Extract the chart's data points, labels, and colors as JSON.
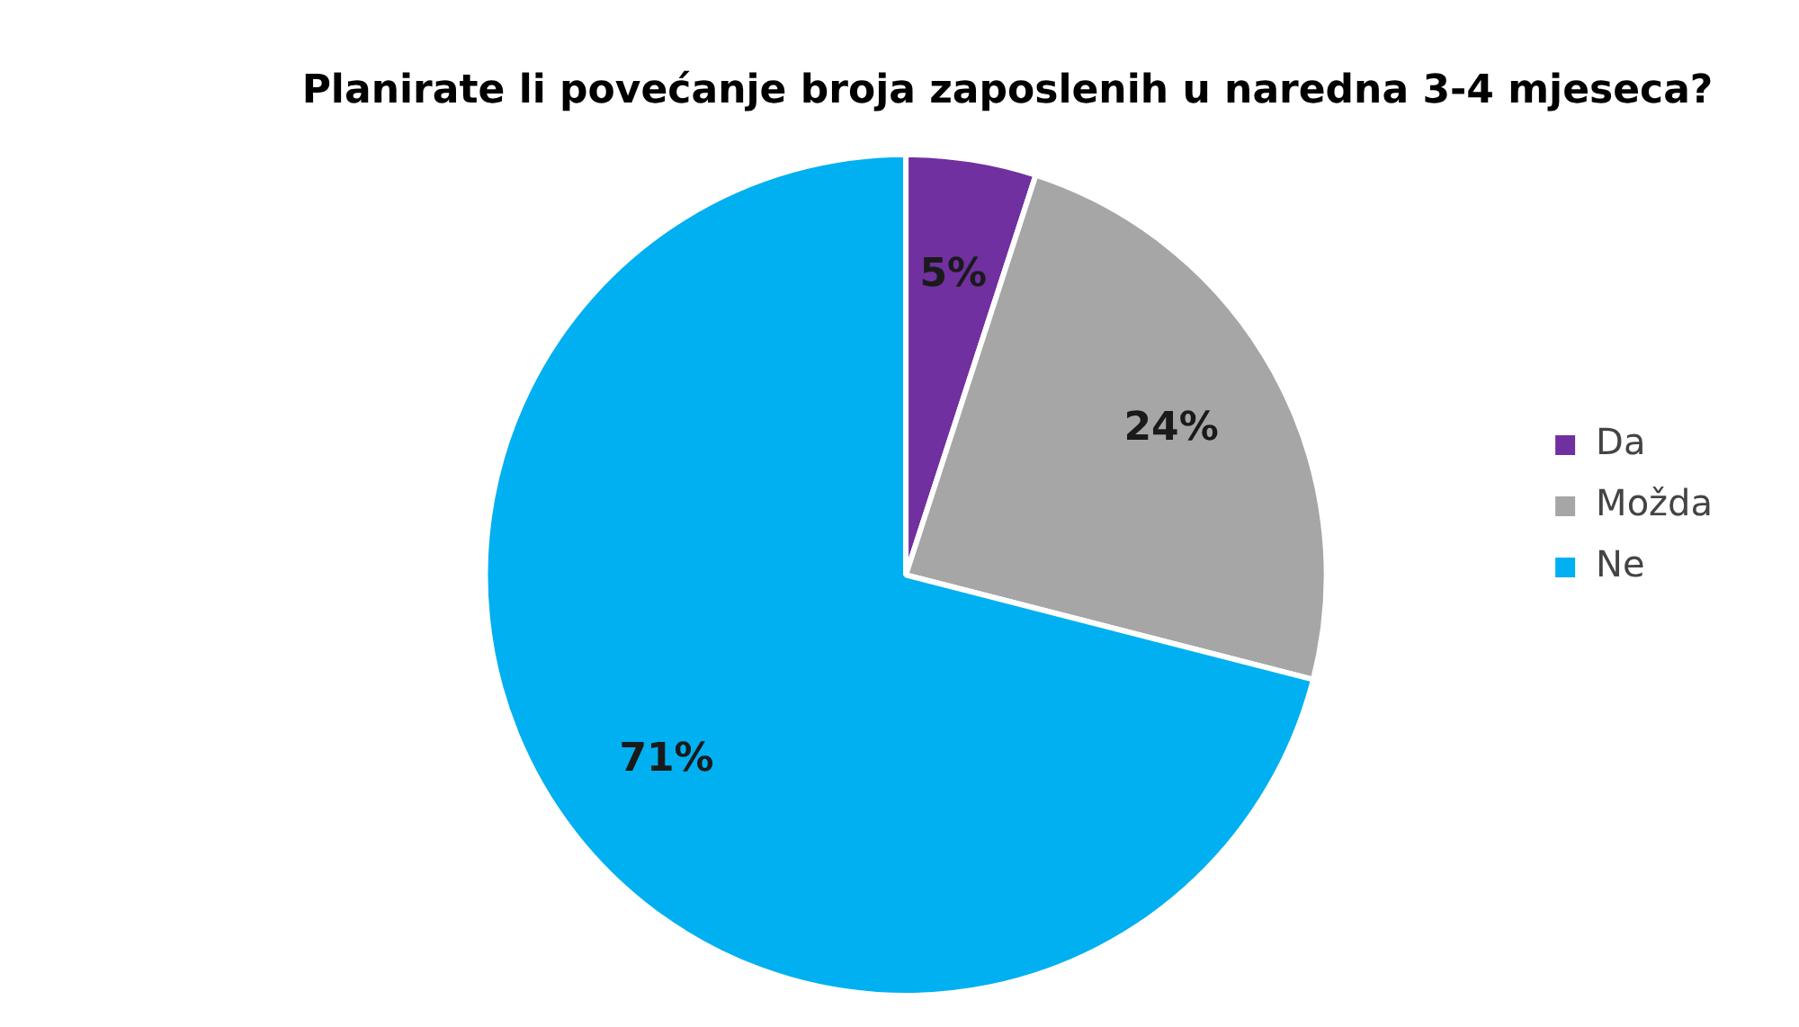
{
  "chart_data": {
    "type": "pie",
    "title": "Planirate li povećanje broja zaposlenih u naredna 3-4 mjeseca?",
    "categories": [
      "Da",
      "Možda",
      "Ne"
    ],
    "values": [
      5,
      24,
      71
    ],
    "colors": [
      "#7030a0",
      "#a6a6a6",
      "#00b0f0"
    ],
    "value_labels": [
      "5%",
      "24%",
      "71%"
    ],
    "legend": "right"
  }
}
